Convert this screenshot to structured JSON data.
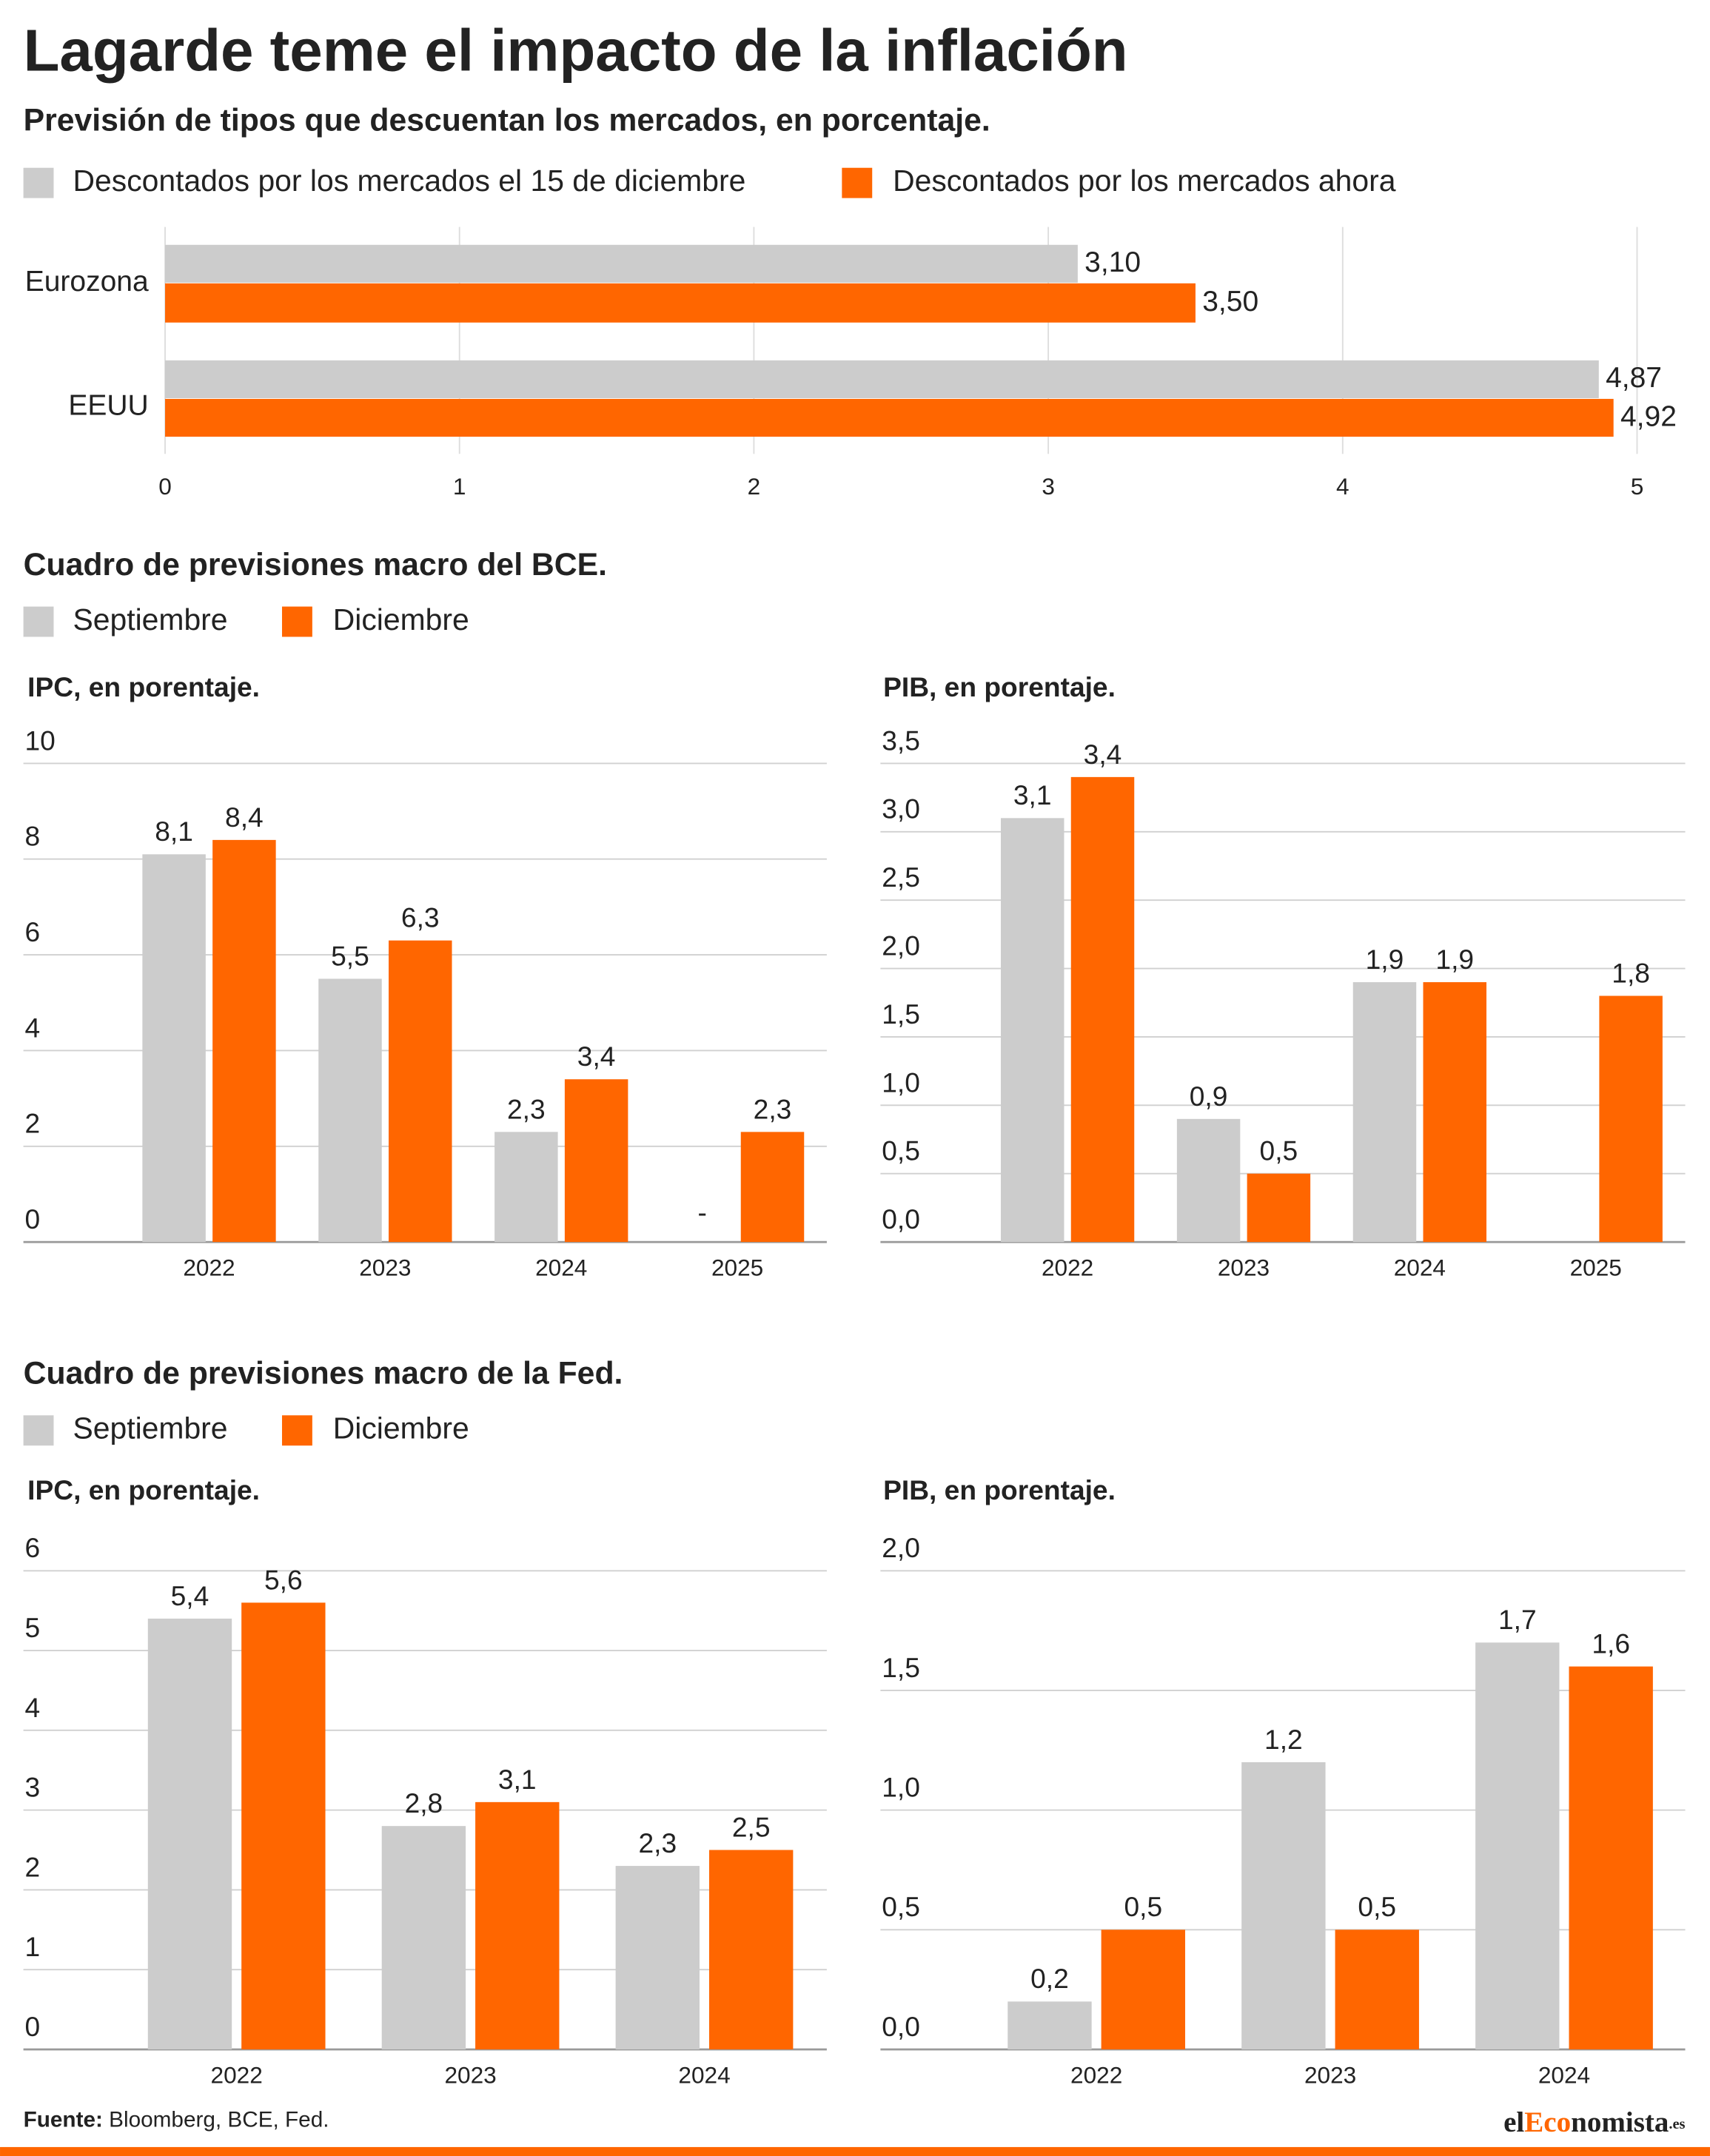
{
  "title": "Lagarde teme el impacto de la inflación",
  "sections": [
    "Cuadro de previsiones macro del BCE.",
    "Cuadro de previsiones macro de la Fed."
  ],
  "source": {
    "label": "Fuente:",
    "text": "Bloomberg, BCE, Fed."
  },
  "logo": [
    "el",
    "Eco",
    "nomista",
    ".es"
  ],
  "chart_data": [
    {
      "type": "hbar",
      "subtitle": "Previsión de tipos que descuentan los mercados, en porcentaje.",
      "categories": [
        "Eurozona",
        "EEUU"
      ],
      "series": [
        {
          "name": "Descontados por los mercados el 15 de diciembre",
          "color": "#cccccc",
          "values": [
            3.1,
            4.87
          ],
          "value_labels": [
            "3,10",
            "4,87"
          ]
        },
        {
          "name": "Descontados por los mercados ahora",
          "color": "#ff6600",
          "values": [
            3.5,
            4.92
          ],
          "value_labels": [
            "3,50",
            "4,92"
          ]
        }
      ],
      "xlim": [
        0,
        5
      ],
      "xticks": [
        0,
        1,
        2,
        3,
        4,
        5
      ],
      "grid": true
    },
    {
      "type": "bar",
      "title": "IPC, en porentaje.",
      "categories": [
        "2022",
        "2023",
        "2024",
        "2025"
      ],
      "series": [
        {
          "name": "Septiembre",
          "color": "#cccccc",
          "values": [
            8.1,
            5.5,
            2.3,
            null
          ],
          "value_labels": [
            "8,1",
            "5,5",
            "2,3",
            "-"
          ]
        },
        {
          "name": "Diciembre",
          "color": "#ff6600",
          "values": [
            8.4,
            6.3,
            3.4,
            2.3
          ],
          "value_labels": [
            "8,4",
            "6,3",
            "3,4",
            "2,3"
          ]
        }
      ],
      "ylim": [
        0,
        10
      ],
      "yticks": [
        0,
        2,
        4,
        6,
        8,
        10
      ],
      "grid": true
    },
    {
      "type": "bar",
      "title": "PIB, en porentaje.",
      "categories": [
        "2022",
        "2023",
        "2024",
        "2025"
      ],
      "series": [
        {
          "name": "Septiembre",
          "color": "#cccccc",
          "values": [
            3.1,
            0.9,
            1.9,
            null
          ],
          "value_labels": [
            "3,1",
            "0,9",
            "1,9",
            null
          ]
        },
        {
          "name": "Diciembre",
          "color": "#ff6600",
          "values": [
            3.4,
            0.5,
            1.9,
            1.8
          ],
          "value_labels": [
            "3,4",
            "0,5",
            "1,9",
            "1,8"
          ]
        }
      ],
      "ylim": [
        0,
        3.5
      ],
      "yticks": [
        {
          "value": 0,
          "label": "0,0"
        },
        {
          "value": 0.5,
          "label": "0,5"
        },
        {
          "value": 1,
          "label": "1,0"
        },
        {
          "value": 1.5,
          "label": "1,5"
        },
        {
          "value": 2,
          "label": "2,0"
        },
        {
          "value": 2.5,
          "label": "2,5"
        },
        {
          "value": 3,
          "label": "3,0"
        },
        {
          "value": 3.5,
          "label": "3,5"
        }
      ],
      "grid": true
    },
    {
      "type": "bar",
      "title": "IPC, en porentaje.",
      "categories": [
        "2022",
        "2023",
        "2024"
      ],
      "series": [
        {
          "name": "Septiembre",
          "color": "#cccccc",
          "values": [
            5.4,
            2.8,
            2.3
          ],
          "value_labels": [
            "5,4",
            "2,8",
            "2,3"
          ]
        },
        {
          "name": "Diciembre",
          "color": "#ff6600",
          "values": [
            5.6,
            3.1,
            2.5
          ],
          "value_labels": [
            "5,6",
            "3,1",
            "2,5"
          ]
        }
      ],
      "ylim": [
        0,
        6
      ],
      "yticks": [
        0,
        1,
        2,
        3,
        4,
        5,
        6
      ],
      "grid": true
    },
    {
      "type": "bar",
      "title": "PIB, en porentaje.",
      "categories": [
        "2022",
        "2023",
        "2024"
      ],
      "series": [
        {
          "name": "Septiembre",
          "color": "#cccccc",
          "values": [
            0.2,
            1.2,
            1.7
          ],
          "value_labels": [
            "0,2",
            "1,2",
            "1,7"
          ]
        },
        {
          "name": "Diciembre",
          "color": "#ff6600",
          "values": [
            0.5,
            0.5,
            1.6
          ],
          "value_labels": [
            "0,5",
            "0,5",
            "1,6"
          ]
        }
      ],
      "ylim": [
        0,
        2
      ],
      "yticks": [
        {
          "value": 0,
          "label": "0,0"
        },
        {
          "value": 0.5,
          "label": "0,5"
        },
        {
          "value": 1,
          "label": "1,0"
        },
        {
          "value": 1.5,
          "label": "1,5"
        },
        {
          "value": 2,
          "label": "2,0"
        }
      ],
      "grid": true
    }
  ]
}
